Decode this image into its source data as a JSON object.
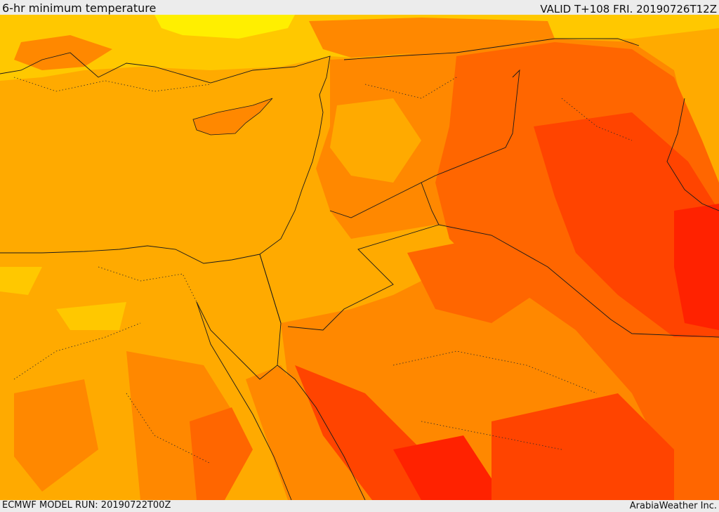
{
  "header": {
    "title": "6-hr minimum temperature",
    "valid": "VALID T+108 FRI. 20190726T12Z"
  },
  "footer": {
    "model_run": "ECMWF MODEL RUN: 20190722T00Z",
    "credit": "ArabiaWeather Inc."
  },
  "map": {
    "region": "Eastern Mediterranean and Middle East",
    "palette": {
      "yellow": "#ffef00",
      "amber_light": "#ffc800",
      "amber": "#ffaa00",
      "orange": "#ff8800",
      "orange_dark": "#ff6600",
      "red_orange": "#ff4400",
      "red": "#ff2200",
      "border": "#1a1a1a"
    }
  }
}
